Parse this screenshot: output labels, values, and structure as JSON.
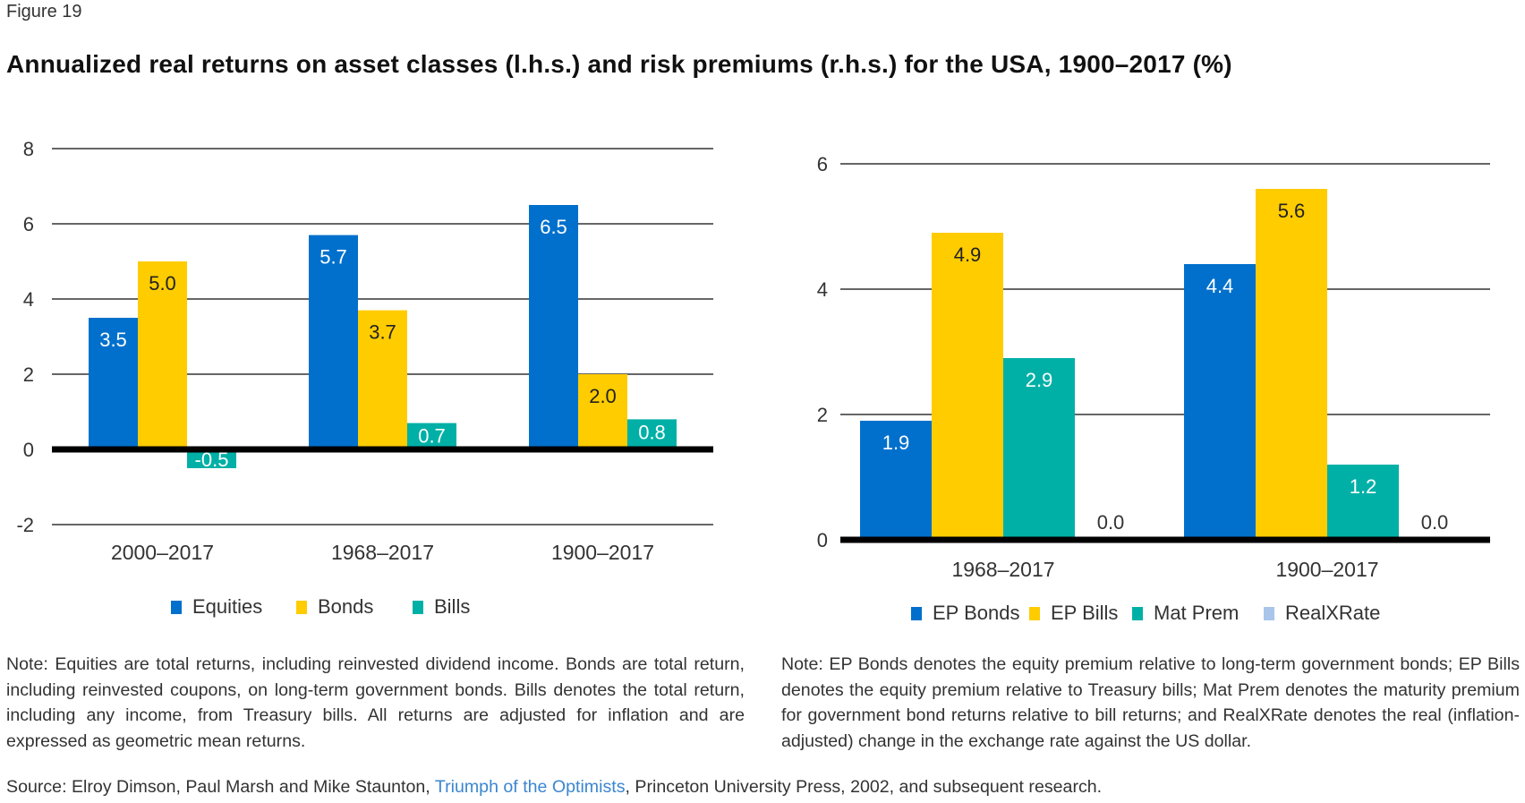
{
  "figure_label": "Figure 19",
  "title": "Annualized real returns on asset classes (l.h.s.) and risk premiums (r.h.s.) for the USA, 1900–2017 (%)",
  "colors": {
    "blue": "#0070cc",
    "yellow": "#ffcc00",
    "teal": "#00b0a6",
    "light_blue": "#a9c6ea",
    "grid": "#333333",
    "axis": "#000000"
  },
  "chart_data": [
    {
      "type": "bar",
      "title": "Annualized real returns on asset classes",
      "xlabel": "",
      "ylabel": "",
      "categories": [
        "2000–2017",
        "1968–2017",
        "1900–2017"
      ],
      "series": [
        {
          "name": "Equities",
          "color": "#0070cc",
          "label_color": "#ffffff",
          "values": [
            3.5,
            5.7,
            6.5
          ],
          "labels": [
            "3.5",
            "5.7",
            "6.5"
          ]
        },
        {
          "name": "Bonds",
          "color": "#ffcc00",
          "label_color": "#222222",
          "values": [
            5.0,
            3.7,
            2.0
          ],
          "labels": [
            "5.0",
            "3.7",
            "2.0"
          ]
        },
        {
          "name": "Bills",
          "color": "#00b0a6",
          "label_color": "#ffffff",
          "values": [
            -0.5,
            0.7,
            0.8
          ],
          "labels": [
            "-0.5",
            "0.7",
            "0.8"
          ]
        }
      ],
      "ylim": [
        -2,
        8
      ],
      "yticks": [
        8,
        6,
        4,
        2,
        0,
        -2
      ],
      "ytick_labels": [
        "8",
        "6",
        "4",
        "2",
        "0",
        "-2"
      ],
      "grid": true,
      "legend": {
        "placement": "bottom-center",
        "entries": [
          "Equities",
          "Bonds",
          "Bills"
        ]
      }
    },
    {
      "type": "bar",
      "title": "Risk premiums",
      "xlabel": "",
      "ylabel": "",
      "categories": [
        "1968–2017",
        "1900–2017"
      ],
      "series": [
        {
          "name": "EP Bonds",
          "color": "#0070cc",
          "label_color": "#ffffff",
          "values": [
            1.9,
            4.4
          ],
          "labels": [
            "1.9",
            "4.4"
          ]
        },
        {
          "name": "EP Bills",
          "color": "#ffcc00",
          "label_color": "#222222",
          "values": [
            4.9,
            5.6
          ],
          "labels": [
            "4.9",
            "5.6"
          ]
        },
        {
          "name": "Mat Prem",
          "color": "#00b0a6",
          "label_color": "#ffffff",
          "values": [
            2.9,
            1.2
          ],
          "labels": [
            "2.9",
            "1.2"
          ]
        },
        {
          "name": "RealXRate",
          "color": "#a9c6ea",
          "label_color": "#333333",
          "values": [
            0.0,
            0.0
          ],
          "labels": [
            "0.0",
            "0.0"
          ]
        }
      ],
      "ylim": [
        0,
        6
      ],
      "yticks": [
        6,
        4,
        2,
        0
      ],
      "ytick_labels": [
        "6",
        "4",
        "2",
        "0"
      ],
      "grid": true,
      "legend": {
        "placement": "bottom-center",
        "entries": [
          "EP Bonds",
          "EP Bills",
          "Mat Prem",
          "RealXRate"
        ]
      }
    }
  ],
  "notes": {
    "left": "Note: Equities are total returns, including reinvested dividend income. Bonds are total return, including reinvested coupons, on long-term government bonds. Bills denotes the total return, including any income, from Treasury bills. All returns are adjusted for inflation and are expressed as geometric mean returns.",
    "right": "Note: EP Bonds denotes the equity premium relative to long-term government bonds; EP Bills denotes the equity premium relative to Treasury bills; Mat Prem denotes the maturity premium for government bond returns relative to bill returns; and RealXRate denotes the real (inflation-adjusted) change in the exchange rate against the US dollar."
  },
  "source": {
    "prefix": "Source: Elroy Dimson, Paul Marsh and Mike Staunton, ",
    "link_text": "Triumph of the Optimists",
    "suffix": ", Princeton University Press, 2002, and subsequent research."
  }
}
